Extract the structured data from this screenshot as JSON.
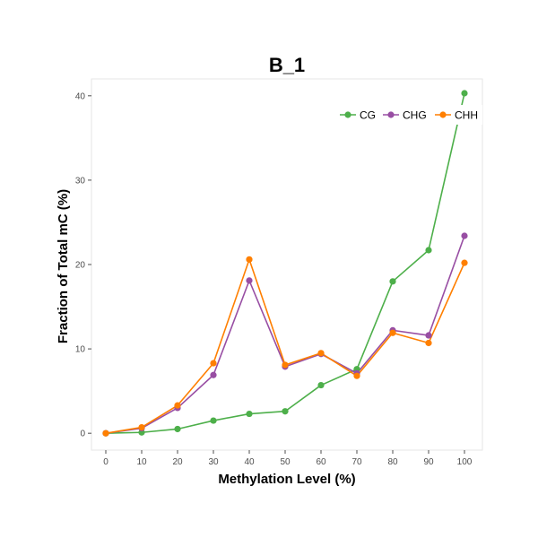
{
  "chart_data": {
    "type": "line",
    "title": "B_1",
    "xlabel": "Methylation Level (%)",
    "ylabel": "Fraction of Total mC (%)",
    "x": [
      0,
      10,
      20,
      30,
      40,
      50,
      60,
      70,
      80,
      90,
      100
    ],
    "xlim": [
      -4,
      105
    ],
    "ylim": [
      -2,
      42
    ],
    "xticks": [
      "0",
      "10",
      "20",
      "30",
      "40",
      "50",
      "60",
      "70",
      "80",
      "90",
      "100"
    ],
    "yticks": [
      "0",
      "10",
      "20",
      "30",
      "40"
    ],
    "grid": false,
    "legend_position": "top-right",
    "series": [
      {
        "name": "CG",
        "color": "#4daf4a",
        "values": [
          0.0,
          0.1,
          0.5,
          1.5,
          2.3,
          2.6,
          5.7,
          7.6,
          18.0,
          21.7,
          40.3
        ]
      },
      {
        "name": "CHG",
        "color": "#984ea3",
        "values": [
          0.0,
          0.6,
          3.0,
          6.9,
          18.1,
          7.9,
          9.4,
          7.1,
          12.2,
          11.6,
          23.4
        ]
      },
      {
        "name": "CHH",
        "color": "#ff7f00",
        "values": [
          0.0,
          0.7,
          3.3,
          8.3,
          20.6,
          8.1,
          9.5,
          6.8,
          11.9,
          10.7,
          20.2
        ]
      }
    ]
  }
}
